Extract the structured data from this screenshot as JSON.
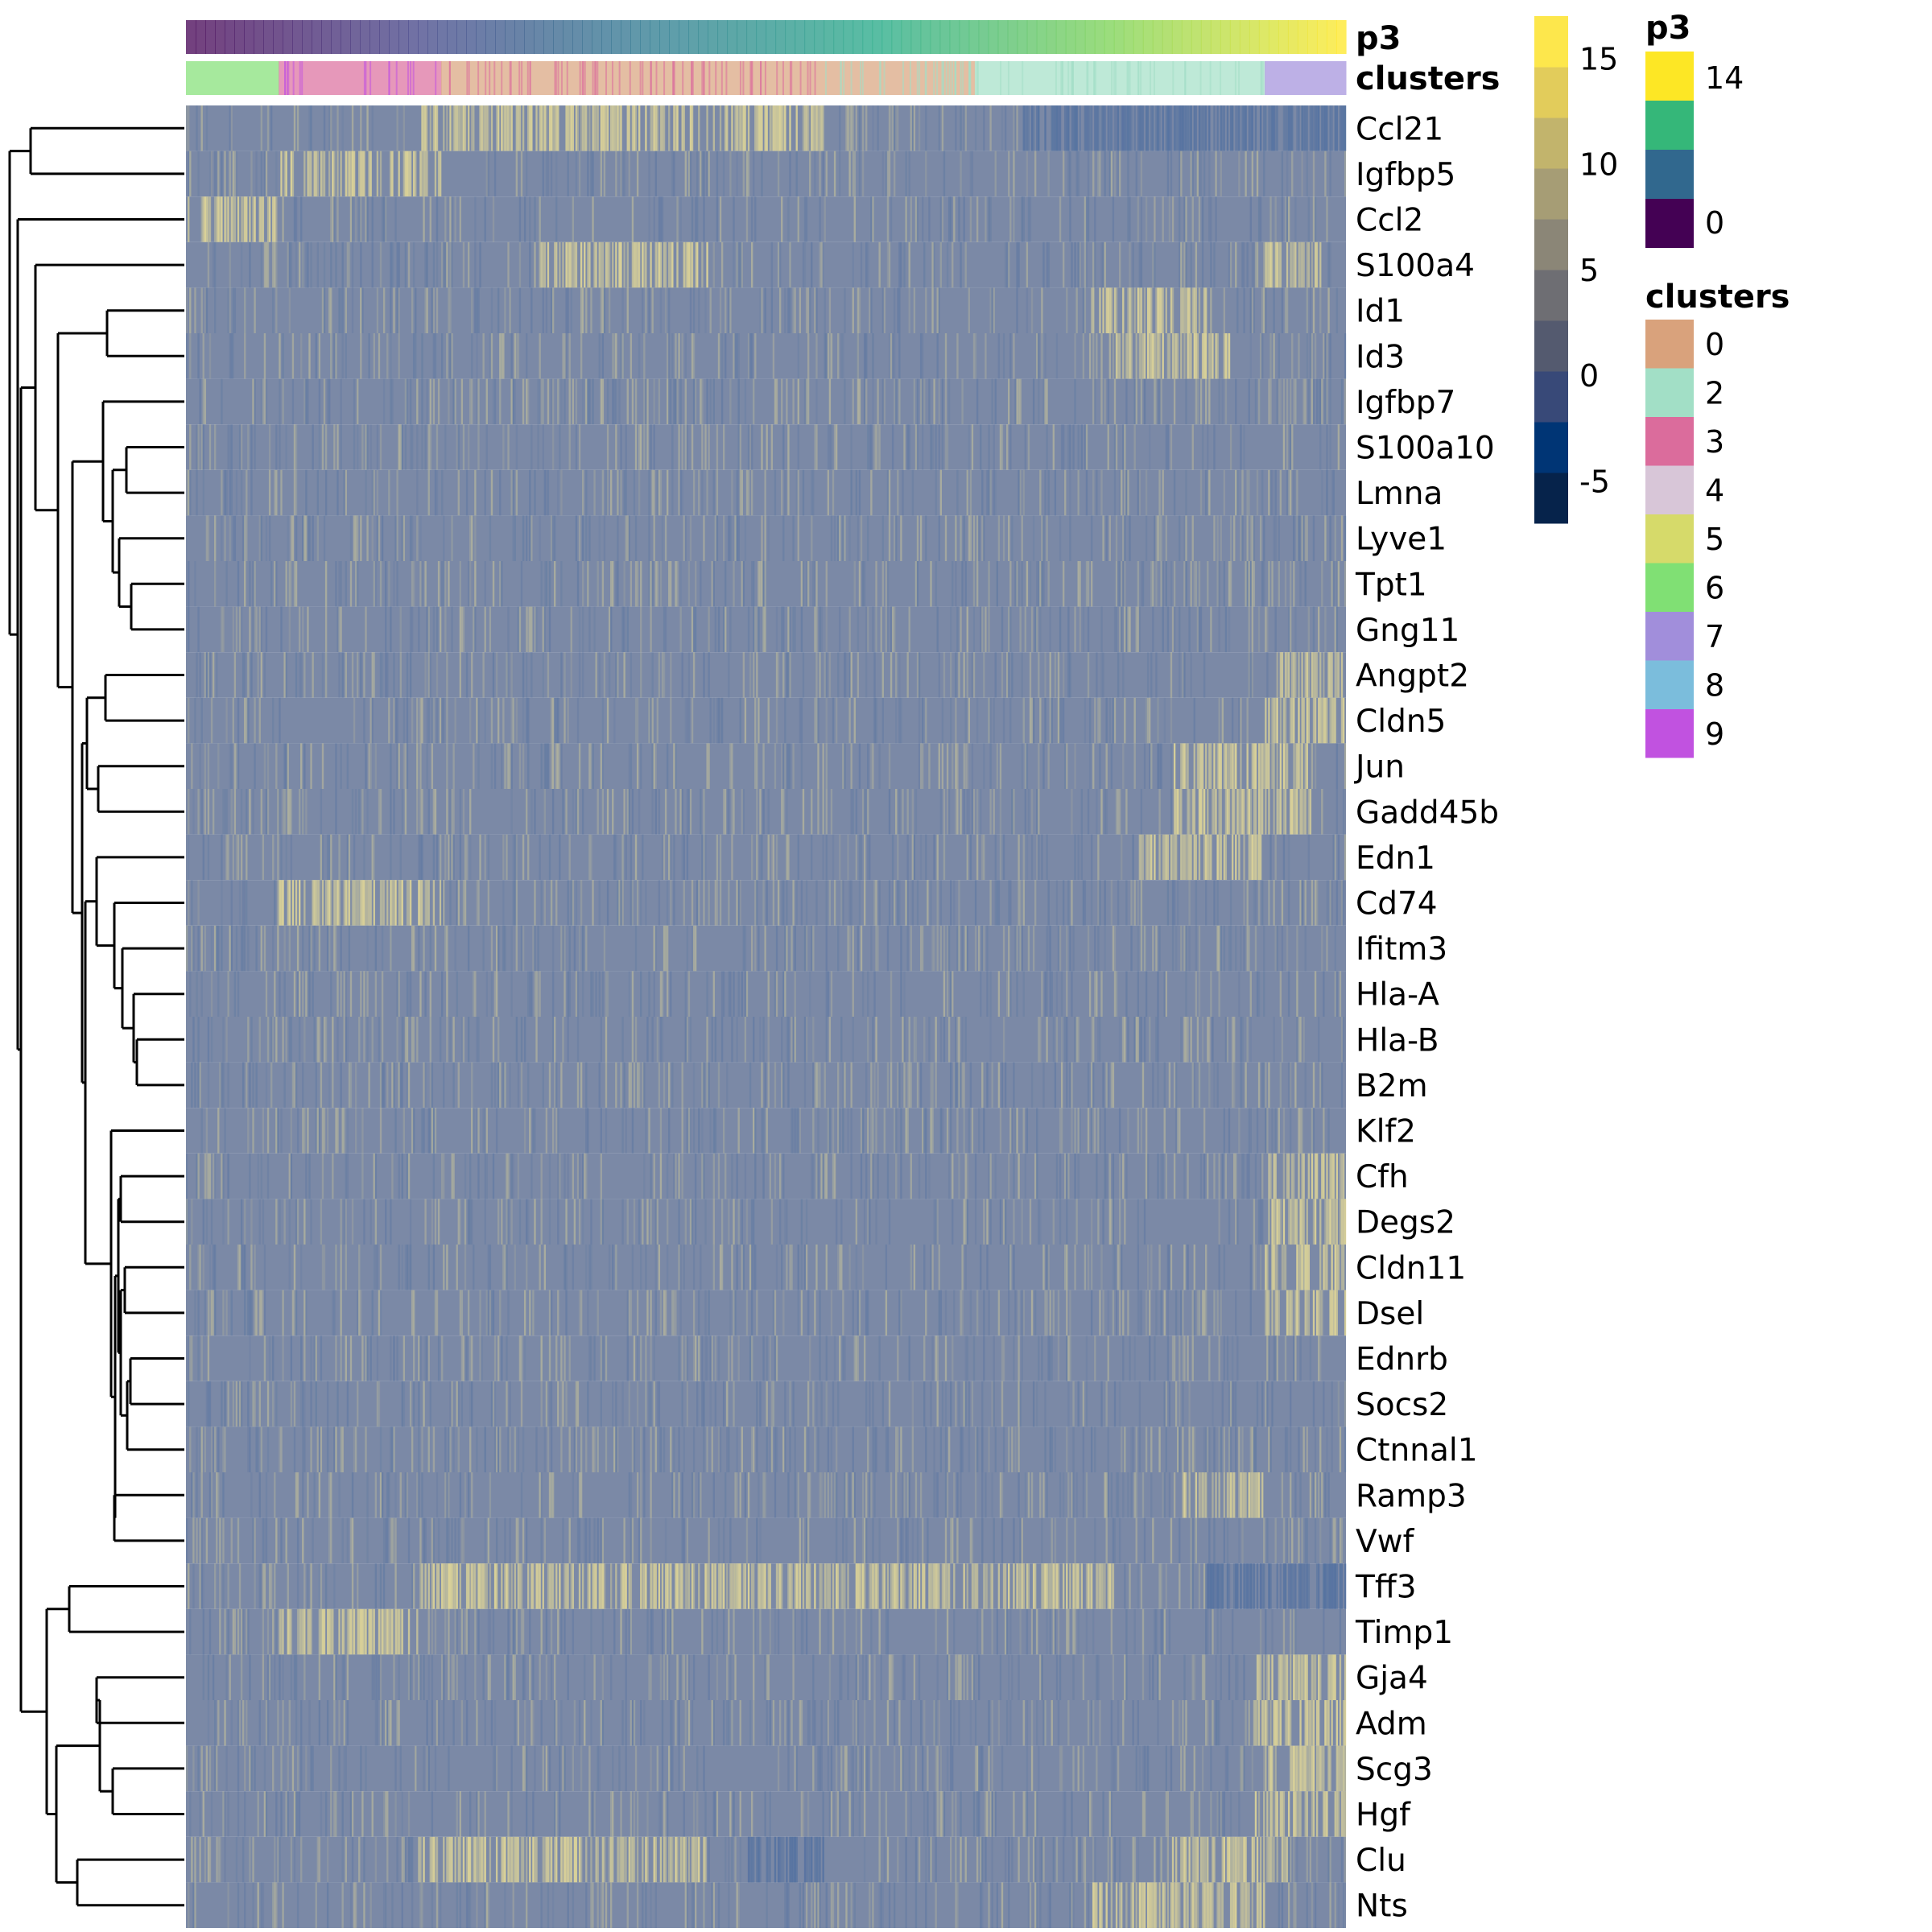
{
  "chart_data": {
    "type": "heatmap",
    "rows": [
      "Ccl21",
      "Igfbp5",
      "Ccl2",
      "S100a4",
      "Id1",
      "Id3",
      "Igfbp7",
      "S100a10",
      "Lmna",
      "Lyve1",
      "Tpt1",
      "Gng11",
      "Angpt2",
      "Cldn5",
      "Jun",
      "Gadd45b",
      "Edn1",
      "Cd74",
      "Ifitm3",
      "Hla-A",
      "Hla-B",
      "B2m",
      "Klf2",
      "Cfh",
      "Degs2",
      "Cldn11",
      "Dsel",
      "Ednrb",
      "Socs2",
      "Ctnnal1",
      "Ramp3",
      "Vwf",
      "Tff3",
      "Timp1",
      "Gja4",
      "Adm",
      "Scg3",
      "Hgf",
      "Clu",
      "Nts"
    ],
    "column_annotations": [
      {
        "name": "p3",
        "type": "continuous",
        "range": [
          0,
          14
        ]
      },
      {
        "name": "clusters",
        "type": "categorical",
        "segments": [
          {
            "cluster": "6",
            "from": 0.0,
            "to": 0.08
          },
          {
            "cluster": "3",
            "from": 0.08,
            "to": 0.22
          },
          {
            "cluster": "0",
            "from": 0.22,
            "to": 0.68
          },
          {
            "cluster": "2",
            "from": 0.68,
            "to": 0.93
          },
          {
            "cluster": "7",
            "from": 0.93,
            "to": 1.0
          }
        ]
      }
    ],
    "color_scale": {
      "min": -7,
      "max": 17,
      "ticks": [
        -5,
        0,
        5,
        10,
        15
      ]
    },
    "row_blocks": [
      {
        "row": "Ccl21",
        "high": [
          [
            0.2,
            0.55
          ]
        ],
        "low": [
          [
            0.72,
            1.0
          ]
        ],
        "base": 0.35
      },
      {
        "row": "Igfbp5",
        "high": [
          [
            0.08,
            0.22
          ]
        ],
        "base": 0.3
      },
      {
        "row": "Ccl2",
        "high": [
          [
            0.0,
            0.08
          ]
        ],
        "base": 0.25
      },
      {
        "row": "S100a4",
        "high": [
          [
            0.3,
            0.45
          ],
          [
            0.93,
            0.98
          ]
        ],
        "base": 0.3
      },
      {
        "row": "Id1",
        "high": [
          [
            0.78,
            0.88
          ]
        ],
        "base": 0.3
      },
      {
        "row": "Id3",
        "high": [
          [
            0.8,
            0.9
          ]
        ],
        "base": 0.32
      },
      {
        "row": "Igfbp7",
        "base": 0.45
      },
      {
        "row": "S100a10",
        "base": 0.38
      },
      {
        "row": "Lmna",
        "base": 0.38
      },
      {
        "row": "Lyve1",
        "base": 0.33
      },
      {
        "row": "Tpt1",
        "base": 0.45
      },
      {
        "row": "Gng11",
        "base": 0.38
      },
      {
        "row": "Angpt2",
        "high": [
          [
            0.94,
            1.0
          ]
        ],
        "base": 0.35
      },
      {
        "row": "Cldn5",
        "high": [
          [
            0.93,
            1.0
          ]
        ],
        "base": 0.35
      },
      {
        "row": "Jun",
        "high": [
          [
            0.85,
            0.97
          ]
        ],
        "base": 0.35
      },
      {
        "row": "Gadd45b",
        "high": [
          [
            0.85,
            0.97
          ]
        ],
        "base": 0.35
      },
      {
        "row": "Edn1",
        "high": [
          [
            0.82,
            0.93
          ]
        ],
        "base": 0.38
      },
      {
        "row": "Cd74",
        "high": [
          [
            0.08,
            0.22
          ]
        ],
        "base": 0.33
      },
      {
        "row": "Ifitm3",
        "base": 0.36
      },
      {
        "row": "Hla-A",
        "base": 0.36
      },
      {
        "row": "Hla-B",
        "base": 0.36
      },
      {
        "row": "B2m",
        "base": 0.38
      },
      {
        "row": "Klf2",
        "base": 0.36
      },
      {
        "row": "Cfh",
        "high": [
          [
            0.93,
            1.0
          ]
        ],
        "base": 0.33
      },
      {
        "row": "Degs2",
        "high": [
          [
            0.93,
            1.0
          ]
        ],
        "base": 0.33
      },
      {
        "row": "Cldn11",
        "high": [
          [
            0.93,
            1.0
          ]
        ],
        "base": 0.33
      },
      {
        "row": "Dsel",
        "high": [
          [
            0.93,
            1.0
          ]
        ],
        "base": 0.32
      },
      {
        "row": "Ednrb",
        "base": 0.35
      },
      {
        "row": "Socs2",
        "base": 0.35
      },
      {
        "row": "Ctnnal1",
        "base": 0.33
      },
      {
        "row": "Ramp3",
        "high": [
          [
            0.85,
            0.93
          ]
        ],
        "base": 0.35
      },
      {
        "row": "Vwf",
        "base": 0.36
      },
      {
        "row": "Tff3",
        "high": [
          [
            0.2,
            0.8
          ]
        ],
        "low": [
          [
            0.88,
            1.0
          ]
        ],
        "base": 0.35
      },
      {
        "row": "Timp1",
        "high": [
          [
            0.08,
            0.2
          ]
        ],
        "base": 0.3
      },
      {
        "row": "Gja4",
        "high": [
          [
            0.92,
            1.0
          ]
        ],
        "base": 0.32
      },
      {
        "row": "Adm",
        "high": [
          [
            0.92,
            1.0
          ]
        ],
        "base": 0.32
      },
      {
        "row": "Scg3",
        "high": [
          [
            0.93,
            1.0
          ]
        ],
        "base": 0.32
      },
      {
        "row": "Hgf",
        "high": [
          [
            0.92,
            1.0
          ]
        ],
        "base": 0.3
      },
      {
        "row": "Clu",
        "high": [
          [
            0.2,
            0.45
          ],
          [
            0.85,
            0.95
          ]
        ],
        "low": [
          [
            0.48,
            0.55
          ]
        ],
        "base": 0.4
      },
      {
        "row": "Nts",
        "high": [
          [
            0.78,
            0.93
          ]
        ],
        "base": 0.35
      }
    ],
    "row_dendrogram_order": "as listed",
    "legends": [
      {
        "title": "p3",
        "type": "continuous",
        "ticks": [
          "14",
          "0"
        ],
        "colors": [
          "#fde725",
          "#35b779",
          "#31688e",
          "#440154"
        ]
      },
      {
        "title": "clusters",
        "type": "categorical",
        "items": [
          {
            "label": "0",
            "color": "#d9a27c"
          },
          {
            "label": "2",
            "color": "#a2dfc6"
          },
          {
            "label": "3",
            "color": "#db6c9c"
          },
          {
            "label": "4",
            "color": "#d8c6d8"
          },
          {
            "label": "5",
            "color": "#d6da6a"
          },
          {
            "label": "6",
            "color": "#80e074"
          },
          {
            "label": "7",
            "color": "#a18edb"
          },
          {
            "label": "8",
            "color": "#7bbddc"
          },
          {
            "label": "9",
            "color": "#c152e0"
          }
        ]
      },
      {
        "title": "",
        "type": "continuous",
        "ticks": [
          "15",
          "10",
          "5",
          "0",
          "-5"
        ],
        "colors": [
          "#06234b",
          "#003575",
          "#384978",
          "#545a6f",
          "#6e6e73",
          "#8b8677",
          "#a69d75",
          "#c2b46c",
          "#e2cc5b",
          "#fde74c"
        ]
      }
    ]
  }
}
